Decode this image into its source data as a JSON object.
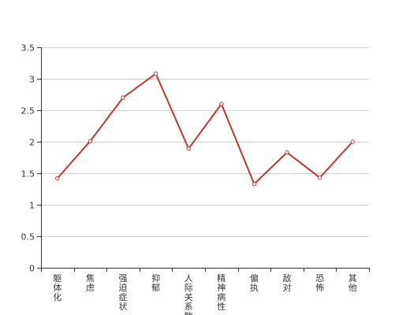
{
  "chart_data": {
    "type": "line",
    "categories": [
      "躯体化",
      "焦虑",
      "强迫症状",
      "抑郁",
      "人际关系敏感",
      "精神病性",
      "偏执",
      "敌对",
      "恐怖",
      "其他"
    ],
    "series": [
      {
        "values": [
          1.42,
          2.01,
          2.7,
          3.08,
          1.89,
          2.6,
          1.33,
          1.83,
          1.43,
          2.0
        ]
      }
    ],
    "y_ticks": [
      "0",
      "0.5",
      "1",
      "1.5",
      "2",
      "2.5",
      "3",
      "3.5"
    ],
    "ylim": [
      0,
      3.5
    ],
    "grid": true,
    "colors": {
      "line": "#c23531",
      "grid": "#cccccc",
      "axis": "#333333"
    }
  }
}
